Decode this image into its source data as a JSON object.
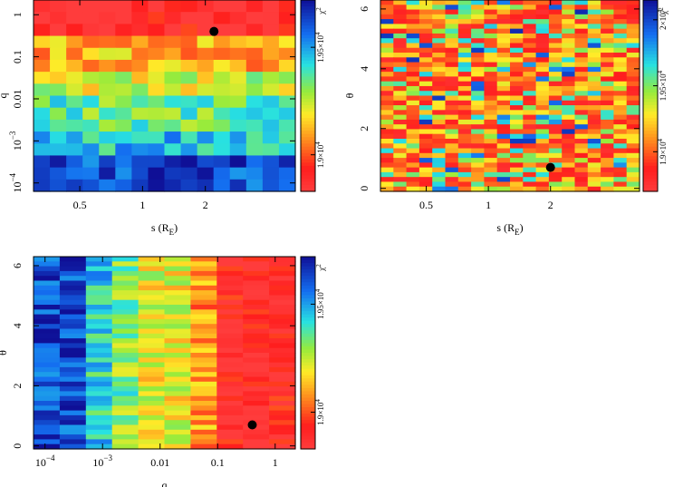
{
  "chart_data": [
    {
      "type": "heatmap",
      "panel": "top-left",
      "xlabel": "s (R_E)",
      "xlabel_main": "s (R",
      "xlabel_sub": "E",
      "xlabel_close": ")",
      "ylabel": "q",
      "x_scale": "log",
      "y_scale": "log",
      "xlim": [
        0.3,
        5.4
      ],
      "ylim_log10": [
        -4.2,
        0.35
      ],
      "x_ticks": [
        {
          "value": 0.5,
          "label": "0.5"
        },
        {
          "value": 1,
          "label": "1"
        },
        {
          "value": 2,
          "label": "2"
        }
      ],
      "y_ticks": [
        {
          "value": 1,
          "label": "1"
        },
        {
          "value": 0.1,
          "label": "0.1"
        },
        {
          "value": 0.01,
          "label": "0.01"
        },
        {
          "value": 0.001,
          "label": "10",
          "sup": "−3"
        },
        {
          "value": 0.0001,
          "label": "10",
          "sup": "−4"
        }
      ],
      "grid_cols": 16,
      "grid_rows": 16,
      "cell_chi2": "pattern: low chi2 (red) for q > 0.1, rising to high chi2 (blue) for q < 1e-3",
      "best_fit": {
        "s": 2.2,
        "q": 0.4
      },
      "colorbar": {
        "label": "χ²",
        "label_main": "χ",
        "label_sup": "2",
        "ticks": [
          {
            "value": 19000,
            "label": "1.9×10",
            "sup": "4"
          },
          {
            "value": 19500,
            "label": "1.95×10",
            "sup": "4"
          }
        ],
        "range": [
          18830,
          19720
        ]
      }
    },
    {
      "type": "heatmap",
      "panel": "top-right",
      "xlabel": "s (R_E)",
      "xlabel_main": "s (R",
      "xlabel_sub": "E",
      "xlabel_close": ")",
      "ylabel": "θ",
      "x_scale": "log",
      "y_scale": "linear",
      "xlim": [
        0.3,
        5.4
      ],
      "ylim": [
        -0.1,
        6.3
      ],
      "x_ticks": [
        {
          "value": 0.5,
          "label": "0.5"
        },
        {
          "value": 1,
          "label": "1"
        },
        {
          "value": 2,
          "label": "2"
        }
      ],
      "y_ticks": [
        {
          "value": 0,
          "label": "0"
        },
        {
          "value": 2,
          "label": "2"
        },
        {
          "value": 4,
          "label": "4"
        },
        {
          "value": 6,
          "label": "6"
        }
      ],
      "grid_cols": 20,
      "grid_rows": 40,
      "cell_chi2": "pattern: mostly red/orange/yellow, scattered green/cyan, a few blue cells",
      "best_fit": {
        "s": 2.0,
        "theta": 0.7
      },
      "colorbar": {
        "label": "χ²",
        "label_main": "χ",
        "label_sup": "2",
        "ticks": [
          {
            "value": 19000,
            "label": "1.9×10",
            "sup": "4"
          },
          {
            "value": 19500,
            "label": "1.95×10",
            "sup": "4"
          },
          {
            "value": 20000,
            "label": "2×10",
            "sup": "4"
          }
        ],
        "range": [
          18700,
          20150
        ]
      }
    },
    {
      "type": "heatmap",
      "panel": "bottom-left",
      "xlabel": "q",
      "ylabel": "θ",
      "x_scale": "log",
      "y_scale": "linear",
      "xlim_log10": [
        -4.2,
        0.35
      ],
      "ylim": [
        -0.1,
        6.3
      ],
      "x_ticks": [
        {
          "value": 0.0001,
          "label": "10",
          "sup": "−4"
        },
        {
          "value": 0.001,
          "label": "10",
          "sup": "−3"
        },
        {
          "value": 0.01,
          "label": "0.01"
        },
        {
          "value": 0.1,
          "label": "0.1"
        },
        {
          "value": 1,
          "label": "1"
        }
      ],
      "y_ticks": [
        {
          "value": 0,
          "label": "0"
        },
        {
          "value": 2,
          "label": "2"
        },
        {
          "value": 4,
          "label": "4"
        },
        {
          "value": 6,
          "label": "6"
        }
      ],
      "grid_cols": 10,
      "grid_rows": 40,
      "cell_chi2": "pattern: blue at q < 1e-3, green/yellow at 1e-3–0.01, red/orange for q > 0.05",
      "best_fit": {
        "q": 0.4,
        "theta": 0.7
      },
      "colorbar": {
        "label": "χ²",
        "label_main": "χ",
        "label_sup": "2",
        "ticks": [
          {
            "value": 19000,
            "label": "1.9×10",
            "sup": "4"
          },
          {
            "value": 19500,
            "label": "1.95×10",
            "sup": "4"
          }
        ],
        "range": [
          18830,
          19720
        ]
      }
    }
  ]
}
